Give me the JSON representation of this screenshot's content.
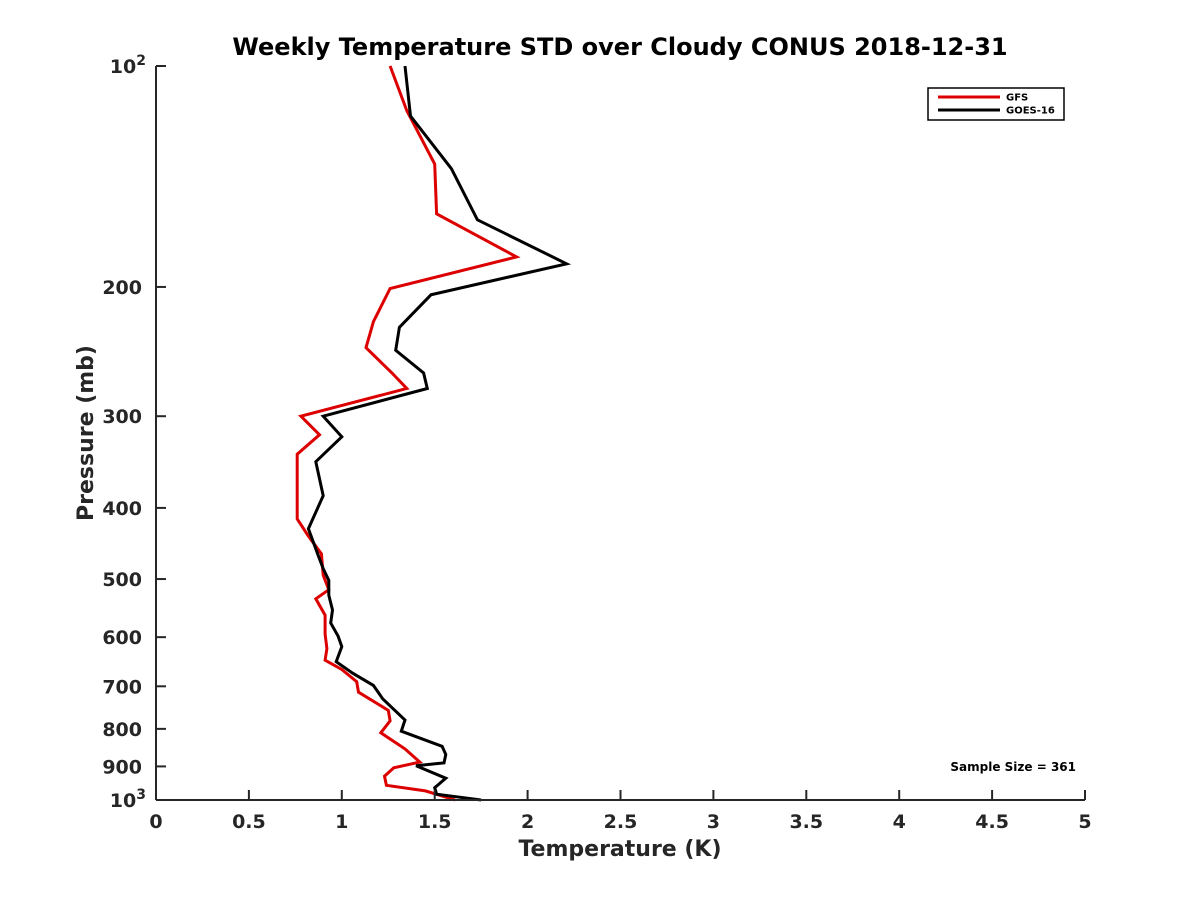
{
  "chart_data": {
    "type": "line",
    "title": "Weekly Temperature STD over Cloudy CONUS 2018-12-31",
    "xlabel": "Temperature (K)",
    "ylabel": "Pressure (mb)",
    "xlim": [
      0,
      5
    ],
    "ylim": [
      100,
      1000
    ],
    "y_scale": "log",
    "y_reversed": true,
    "x_ticks": [
      "0",
      "0.5",
      "1",
      "1.5",
      "2",
      "2.5",
      "3",
      "3.5",
      "4",
      "4.5",
      "5"
    ],
    "x_tick_values": [
      0,
      0.5,
      1,
      1.5,
      2,
      2.5,
      3,
      3.5,
      4,
      4.5,
      5
    ],
    "y_ticks": [
      {
        "value": 100,
        "label": "10",
        "sup": "2"
      },
      {
        "value": 200,
        "label": "200",
        "sup": ""
      },
      {
        "value": 300,
        "label": "300",
        "sup": ""
      },
      {
        "value": 400,
        "label": "400",
        "sup": ""
      },
      {
        "value": 500,
        "label": "500",
        "sup": ""
      },
      {
        "value": 600,
        "label": "600",
        "sup": ""
      },
      {
        "value": 700,
        "label": "700",
        "sup": ""
      },
      {
        "value": 800,
        "label": "800",
        "sup": ""
      },
      {
        "value": 900,
        "label": "900",
        "sup": ""
      },
      {
        "value": 1000,
        "label": "10",
        "sup": "3"
      }
    ],
    "legend_position": "top-right",
    "grid": false,
    "annotation": "Sample Size = 361",
    "series": [
      {
        "name": "GFS",
        "color": "#dd0000",
        "points": [
          [
            1.26,
            100
          ],
          [
            1.35,
            115
          ],
          [
            1.5,
            136
          ],
          [
            1.51,
            159
          ],
          [
            1.94,
            182
          ],
          [
            1.26,
            201
          ],
          [
            1.17,
            223
          ],
          [
            1.13,
            242
          ],
          [
            1.27,
            262
          ],
          [
            1.35,
            275
          ],
          [
            0.78,
            300
          ],
          [
            0.88,
            318
          ],
          [
            0.76,
            338
          ],
          [
            0.76,
            367
          ],
          [
            0.76,
            414
          ],
          [
            0.82,
            437
          ],
          [
            0.89,
            462
          ],
          [
            0.9,
            494
          ],
          [
            0.93,
            517
          ],
          [
            0.86,
            532
          ],
          [
            0.91,
            560
          ],
          [
            0.91,
            594
          ],
          [
            0.92,
            622
          ],
          [
            0.91,
            645
          ],
          [
            1.0,
            664
          ],
          [
            1.08,
            690
          ],
          [
            1.09,
            713
          ],
          [
            1.25,
            755
          ],
          [
            1.26,
            780
          ],
          [
            1.21,
            810
          ],
          [
            1.34,
            852
          ],
          [
            1.42,
            888
          ],
          [
            1.28,
            904
          ],
          [
            1.23,
            928
          ],
          [
            1.24,
            955
          ],
          [
            1.45,
            972
          ],
          [
            1.61,
            1000
          ]
        ]
      },
      {
        "name": "GOES-16",
        "color": "#000000",
        "points": [
          [
            1.34,
            100
          ],
          [
            1.37,
            117
          ],
          [
            1.59,
            138
          ],
          [
            1.73,
            162
          ],
          [
            2.21,
            186
          ],
          [
            1.48,
            205
          ],
          [
            1.31,
            227
          ],
          [
            1.29,
            244
          ],
          [
            1.44,
            262
          ],
          [
            1.46,
            275
          ],
          [
            0.9,
            300
          ],
          [
            1.0,
            320
          ],
          [
            0.86,
            346
          ],
          [
            0.9,
            385
          ],
          [
            0.82,
            427
          ],
          [
            0.87,
            462
          ],
          [
            0.9,
            484
          ],
          [
            0.93,
            502
          ],
          [
            0.93,
            526
          ],
          [
            0.95,
            551
          ],
          [
            0.94,
            574
          ],
          [
            0.98,
            598
          ],
          [
            1.0,
            618
          ],
          [
            0.97,
            648
          ],
          [
            1.06,
            672
          ],
          [
            1.17,
            698
          ],
          [
            1.22,
            728
          ],
          [
            1.34,
            778
          ],
          [
            1.32,
            806
          ],
          [
            1.54,
            845
          ],
          [
            1.56,
            867
          ],
          [
            1.55,
            890
          ],
          [
            1.4,
            898
          ],
          [
            1.56,
            934
          ],
          [
            1.5,
            962
          ],
          [
            1.51,
            982
          ],
          [
            1.75,
            1000
          ]
        ]
      }
    ]
  }
}
